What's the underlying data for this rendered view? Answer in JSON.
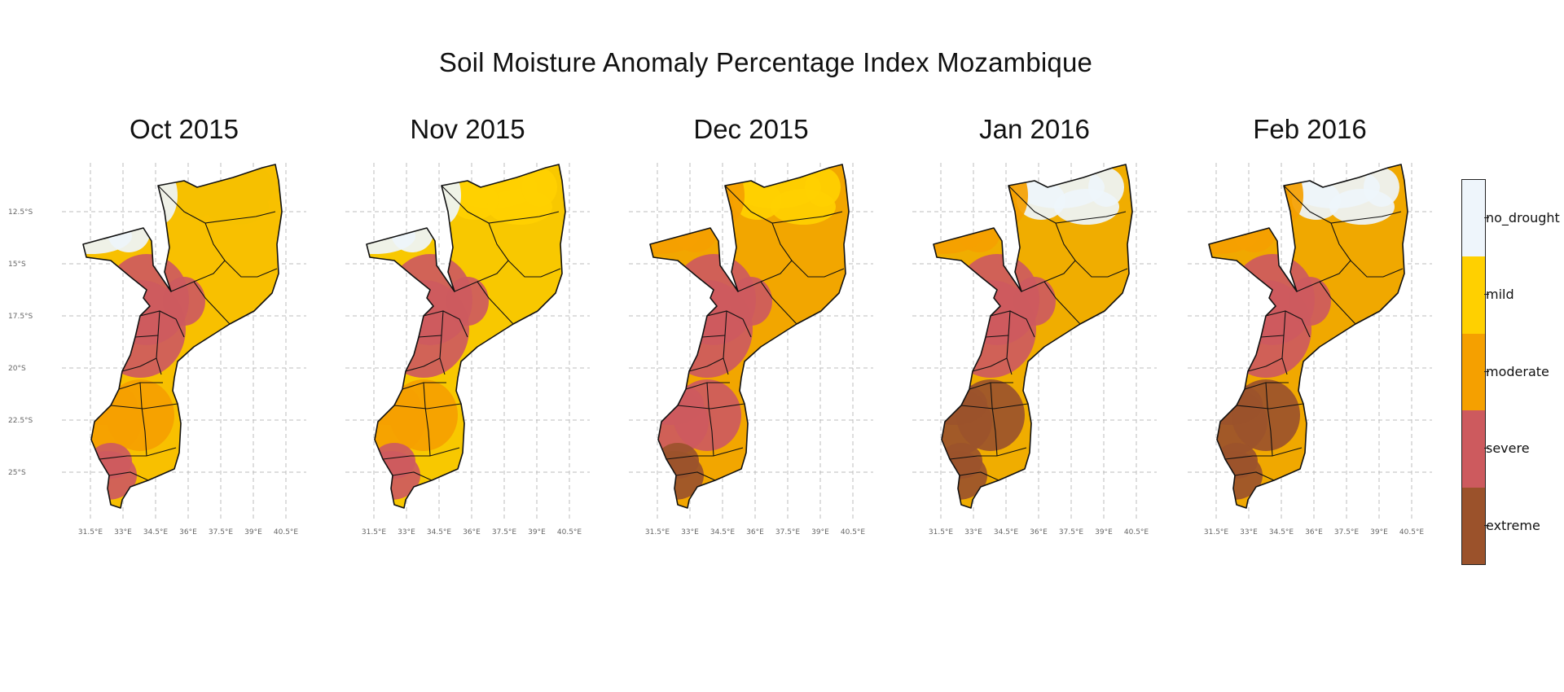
{
  "title": "Soil Moisture Anomaly Percentage Index Mozambique",
  "panels": [
    {
      "title": "Oct 2015",
      "regions": {
        "north": "mixed",
        "northwest": "no_drought",
        "center": "severe",
        "south": "moderate",
        "farsouth": "severe"
      }
    },
    {
      "title": "Nov 2015",
      "regions": {
        "north": "mild",
        "northwest": "no_drought",
        "center": "severe",
        "south": "moderate",
        "farsouth": "severe"
      }
    },
    {
      "title": "Dec 2015",
      "regions": {
        "north": "mild",
        "northwest": "moderate",
        "center": "severe",
        "south": "severe",
        "farsouth": "extreme"
      }
    },
    {
      "title": "Jan 2016",
      "regions": {
        "north": "no_drought",
        "northwest": "moderate",
        "center": "severe",
        "south": "extreme",
        "farsouth": "extreme"
      }
    },
    {
      "title": "Feb 2016",
      "regions": {
        "north": "no_drought",
        "northwest": "moderate",
        "center": "severe",
        "south": "extreme",
        "farsouth": "extreme"
      }
    }
  ],
  "axes": {
    "x_ticks": [
      "31.5°E",
      "33°E",
      "34.5°E",
      "36°E",
      "37.5°E",
      "39°E",
      "40.5°E"
    ],
    "y_ticks": [
      "12.5°S",
      "15°S",
      "17.5°S",
      "20°S",
      "22.5°S",
      "25°S"
    ]
  },
  "legend": {
    "items": [
      {
        "label": "no_drought",
        "color": "#eef5fb"
      },
      {
        "label": "mild",
        "color": "#ffd000"
      },
      {
        "label": "moderate",
        "color": "#f5a000"
      },
      {
        "label": "severe",
        "color": "#cd5a5e"
      },
      {
        "label": "extreme",
        "color": "#9b522b"
      }
    ]
  },
  "colors": {
    "no_drought": "#eef5fb",
    "mild": "#ffd000",
    "moderate": "#f5a000",
    "severe": "#cd5a5e",
    "extreme": "#9b522b",
    "mixed": "#f5c000"
  }
}
